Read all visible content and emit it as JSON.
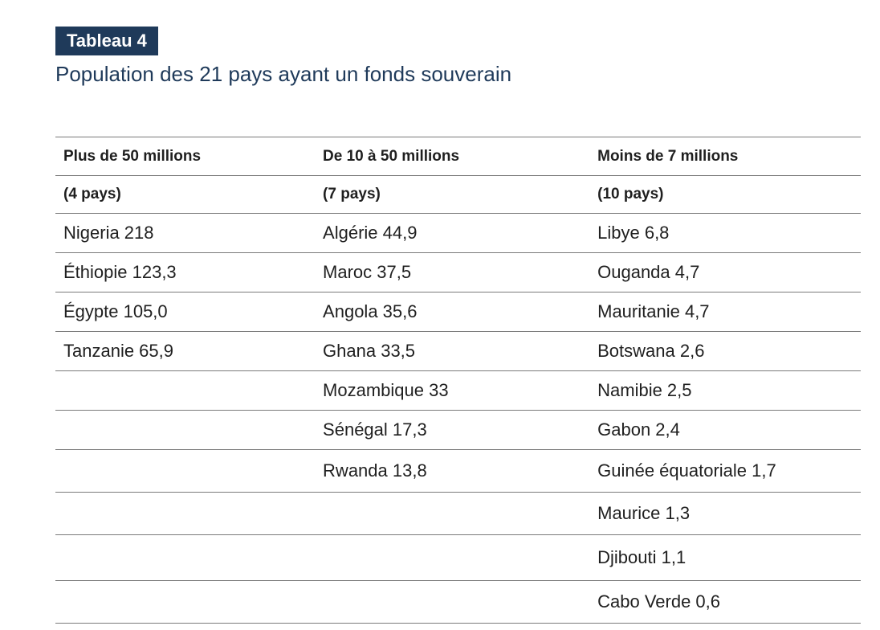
{
  "badge": "Tableau 4",
  "title": "Population des 21 pays ayant un fonds souverain",
  "columns": [
    {
      "header": "Plus de 50 millions",
      "count": "(4 pays)"
    },
    {
      "header": "De 10 à 50 millions",
      "count": "(7 pays)"
    },
    {
      "header": "Moins de 7 millions",
      "count": "(10 pays)"
    }
  ],
  "rows": [
    [
      "Nigeria 218",
      "Algérie 44,9",
      "Libye 6,8"
    ],
    [
      "Éthiopie 123,3",
      "Maroc 37,5",
      "Ouganda 4,7"
    ],
    [
      "Égypte 105,0",
      "Angola 35,6",
      "Mauritanie 4,7"
    ],
    [
      "Tanzanie 65,9",
      "Ghana 33,5",
      "Botswana 2,6"
    ],
    [
      "",
      "Mozambique 33",
      "Namibie 2,5"
    ],
    [
      "",
      "Sénégal 17,3",
      "Gabon 2,4"
    ],
    [
      "",
      "Rwanda 13,8",
      "Guinée équatoriale 1,7"
    ],
    [
      "",
      "",
      "Maurice 1,3"
    ],
    [
      "",
      "",
      "Djibouti 1,1"
    ],
    [
      "",
      "",
      "Cabo Verde 0,6"
    ]
  ]
}
